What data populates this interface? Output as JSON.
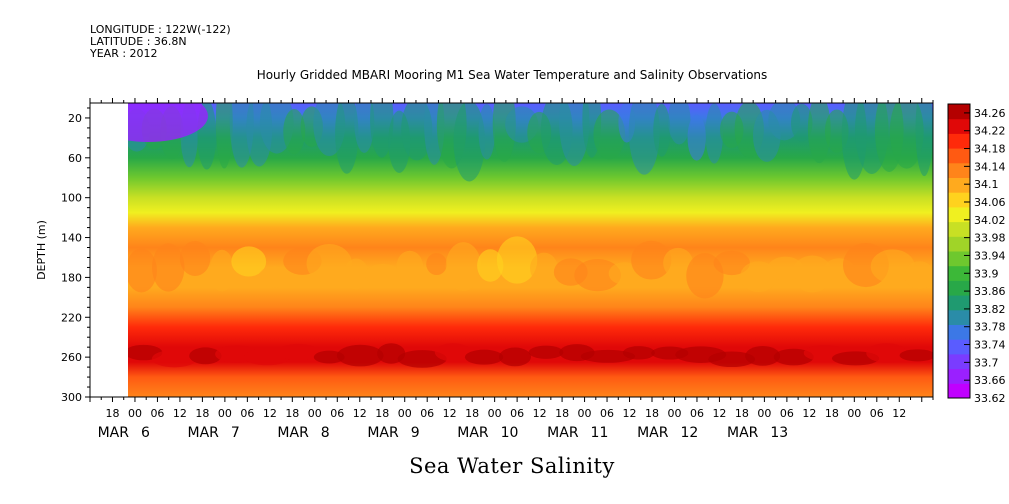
{
  "header": {
    "longitude": "LONGITUDE : 122W(-122)",
    "latitude": "LATITUDE : 36.8N",
    "year": "YEAR : 2012"
  },
  "chart_data": {
    "type": "heatmap",
    "title": "Hourly Gridded MBARI Mooring M1 Sea Water Temperature and Salinity Observations",
    "caption": "Sea Water Salinity",
    "ylabel": "DEPTH (m)",
    "ylim": [
      300,
      5
    ],
    "y_ticks": [
      20,
      60,
      100,
      140,
      180,
      220,
      260,
      300
    ],
    "x_range_hours": [
      "2012-03-05 12:00",
      "2012-03-13 21:00"
    ],
    "data_start": "2012-03-06 00:00",
    "x_hour_ticks": [
      "18",
      "00",
      "06",
      "12",
      "18",
      "00",
      "06",
      "12",
      "18",
      "00",
      "06",
      "12",
      "18",
      "00",
      "06",
      "12",
      "18",
      "00",
      "06",
      "12",
      "18",
      "00",
      "06",
      "12",
      "18",
      "00",
      "06",
      "12",
      "18",
      "00",
      "06",
      "12",
      "18",
      "00",
      "06",
      "12"
    ],
    "x_day_labels": [
      "MAR 6",
      "MAR 7",
      "MAR 8",
      "MAR 9",
      "MAR 10",
      "MAR 11",
      "MAR 12",
      "MAR 13"
    ],
    "colorbar_ticks": [
      34.26,
      34.22,
      34.18,
      34.14,
      34.1,
      34.06,
      34.02,
      33.98,
      33.94,
      33.9,
      33.86,
      33.82,
      33.78,
      33.74,
      33.7,
      33.66,
      33.62
    ],
    "colorbar_tick_labels": [
      "34.26",
      "34.22",
      "34.18",
      "34.14",
      "34.1",
      "34.06",
      "34.02",
      "33.98",
      "33.94",
      "33.9",
      "33.86",
      "33.82",
      "33.78",
      "33.74",
      "33.7",
      "33.66",
      "33.62"
    ],
    "value_range": [
      33.62,
      34.28
    ],
    "depth_profile": [
      {
        "depth": 5,
        "salinity": 33.72
      },
      {
        "depth": 20,
        "salinity": 33.76
      },
      {
        "depth": 40,
        "salinity": 33.82
      },
      {
        "depth": 60,
        "salinity": 33.88
      },
      {
        "depth": 80,
        "salinity": 33.94
      },
      {
        "depth": 100,
        "salinity": 34.0
      },
      {
        "depth": 115,
        "salinity": 34.04
      },
      {
        "depth": 130,
        "salinity": 34.09
      },
      {
        "depth": 150,
        "salinity": 34.12
      },
      {
        "depth": 170,
        "salinity": 34.11
      },
      {
        "depth": 190,
        "salinity": 34.1
      },
      {
        "depth": 210,
        "salinity": 34.14
      },
      {
        "depth": 230,
        "salinity": 34.19
      },
      {
        "depth": 250,
        "salinity": 34.24
      },
      {
        "depth": 265,
        "salinity": 34.22
      },
      {
        "depth": 280,
        "salinity": 34.17
      },
      {
        "depth": 300,
        "salinity": 34.13
      }
    ],
    "colors": [
      "#c000ff",
      "#9a20ff",
      "#7a3cff",
      "#5a5cff",
      "#3c78e6",
      "#2a8ca8",
      "#1f9a70",
      "#28a848",
      "#3cb838",
      "#6ec82e",
      "#a0d428",
      "#c8e024",
      "#f0f020",
      "#ffd21e",
      "#ffaa1e",
      "#ff841a",
      "#ff5a12",
      "#ff2a0a",
      "#e00808",
      "#b40000"
    ]
  }
}
